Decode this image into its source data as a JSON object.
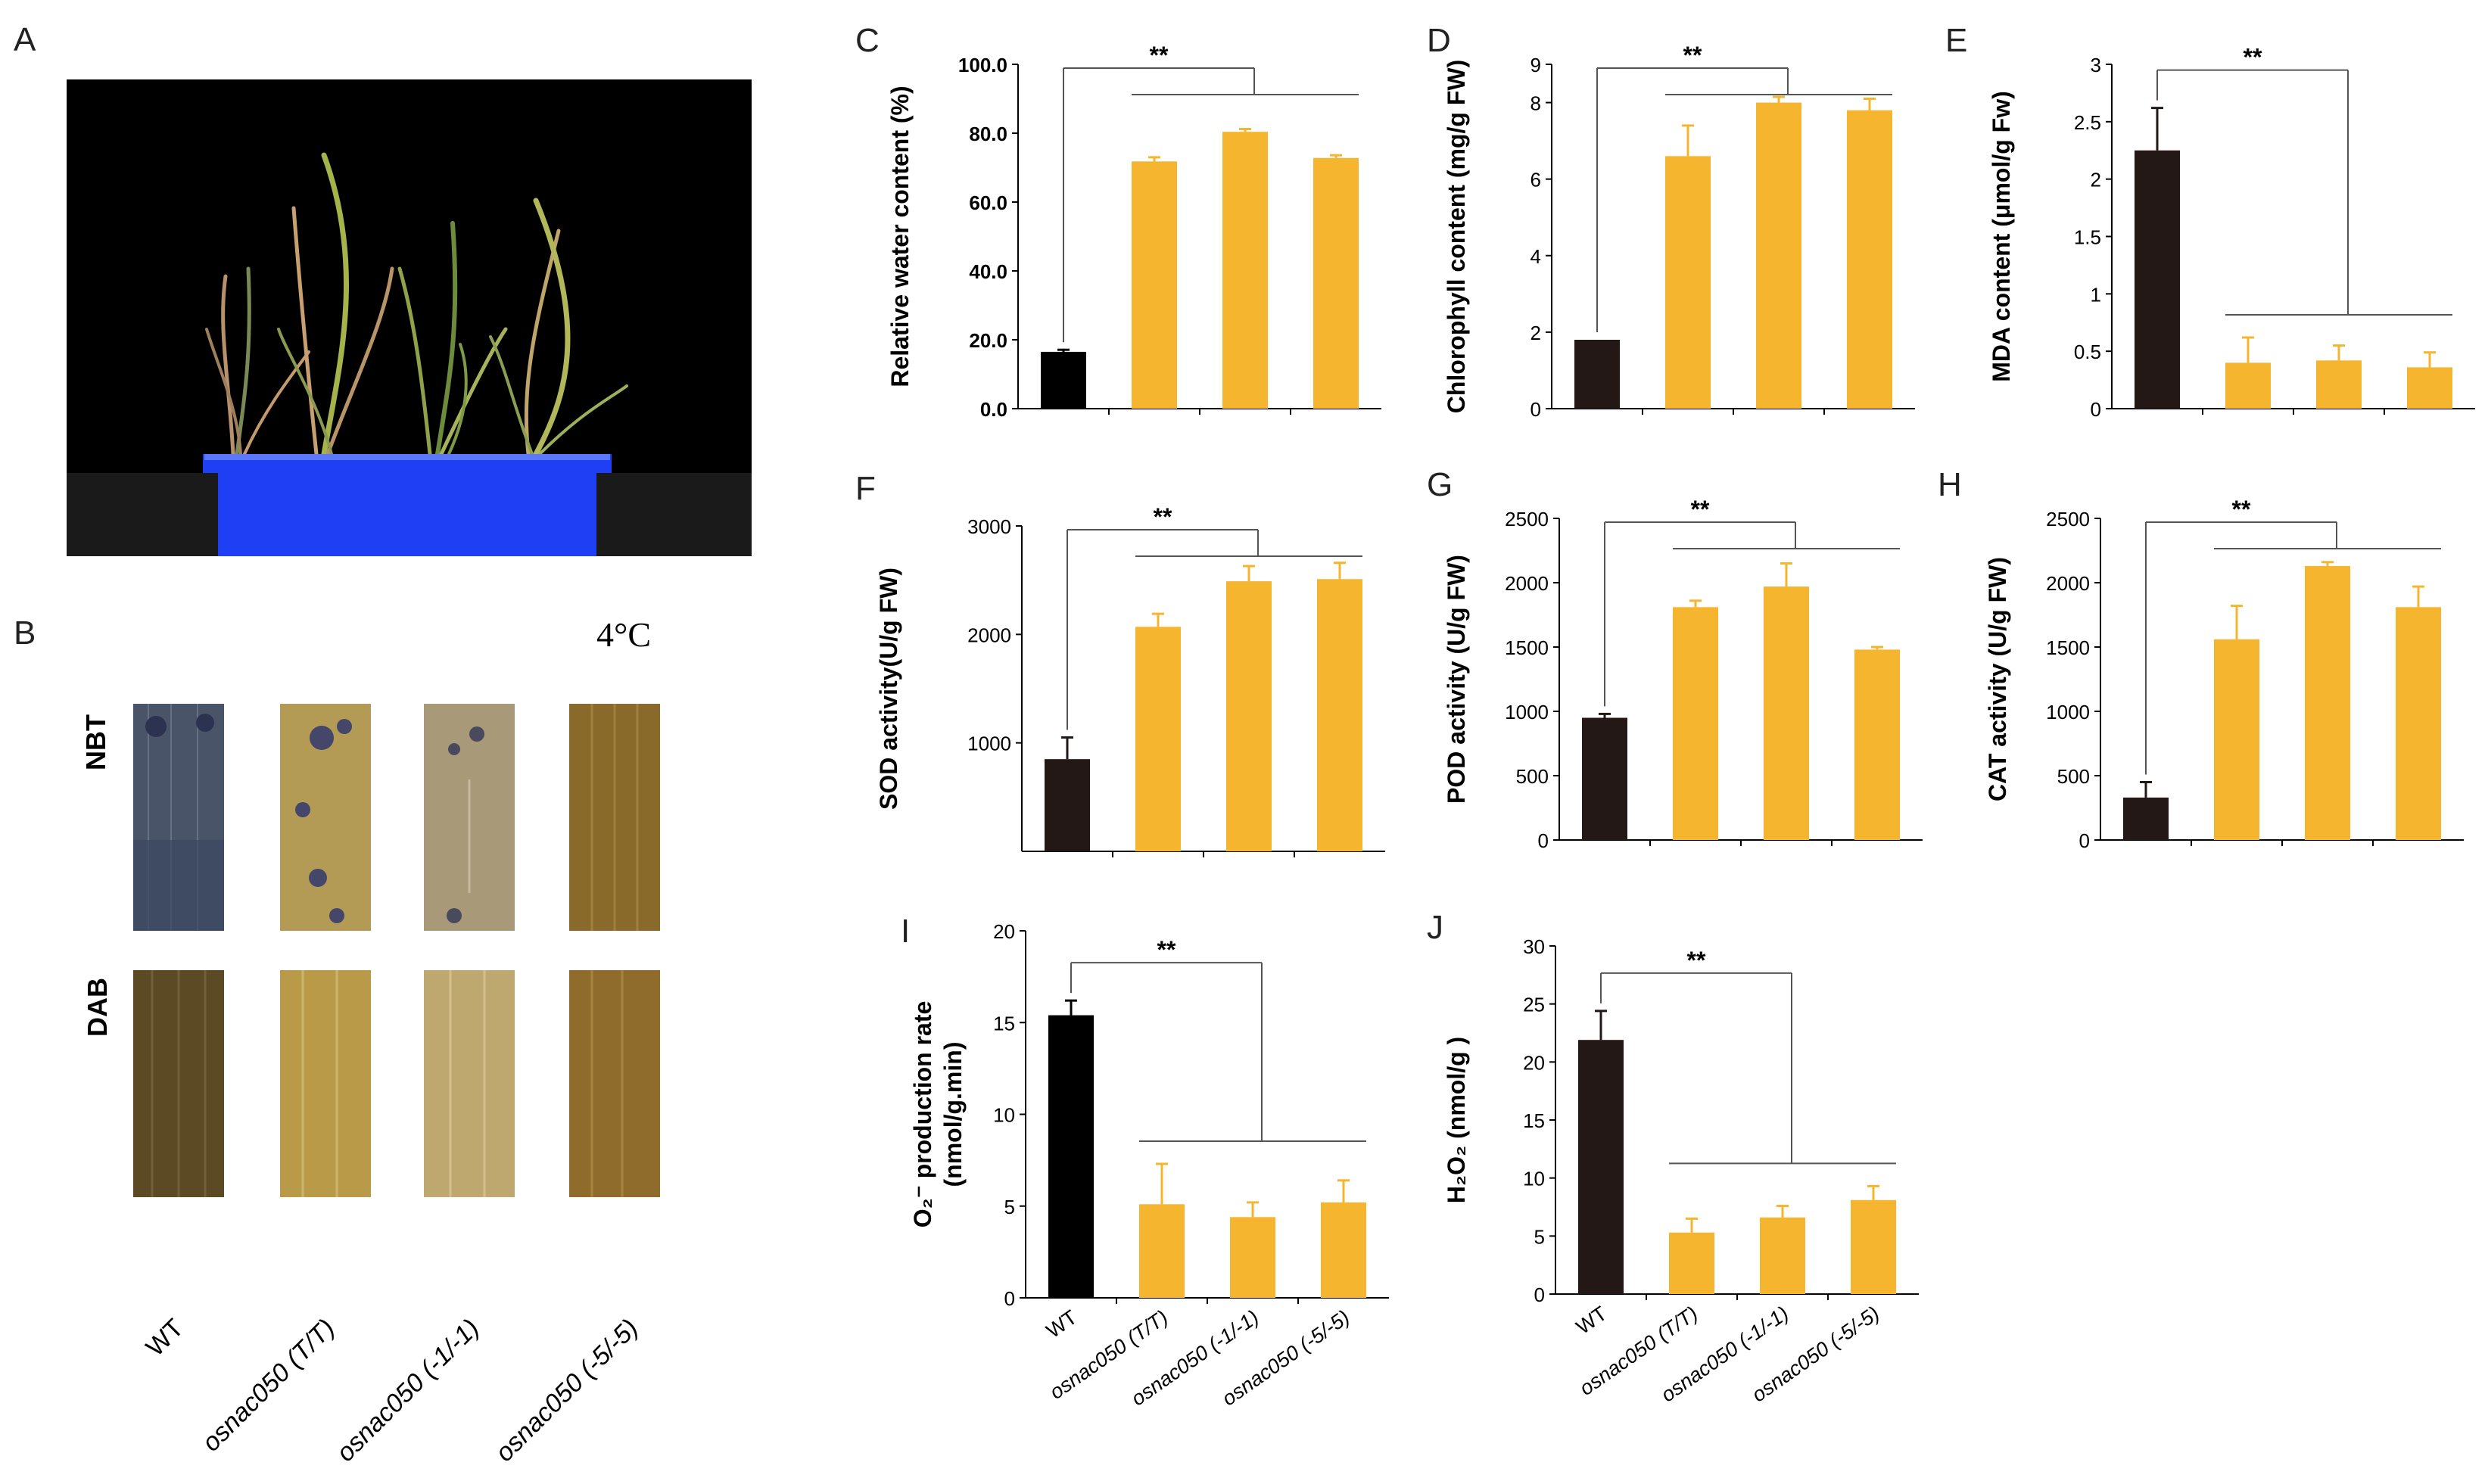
{
  "panels": {
    "A": "A",
    "B": "B"
  },
  "panelB": {
    "temperature": "4°C",
    "rows": [
      "NBT",
      "DAB"
    ],
    "genotypes": [
      "WT",
      "osnac050 (T/T)",
      "osnac050 (-1/-1)",
      "osnac050 (-5/-5)"
    ]
  },
  "colors": {
    "wt": "#000000",
    "mutant": "#f5b52e",
    "pot": "#1a3dff",
    "background_photo": "#000000"
  },
  "sig_label": "**",
  "chart_data": [
    {
      "id": "C",
      "type": "bar",
      "categories": [
        "WT",
        "osnac050 (T/T)",
        "osnac050 (-1/-1)",
        "osnac050 (-5/-5)"
      ],
      "values": [
        16.5,
        71.8,
        80.4,
        72.8
      ],
      "errors": [
        0.6,
        1.2,
        0.8,
        0.8
      ],
      "ylabel": "Relative water content  (%)",
      "ylim": [
        0,
        100
      ],
      "yticks": [
        "0.0",
        "20.0",
        "40.0",
        "60.0",
        "80.0",
        "100.0"
      ],
      "ytick_values": [
        0,
        20,
        40,
        60,
        80,
        100
      ],
      "annotation": "**"
    },
    {
      "id": "D",
      "type": "bar",
      "categories": [
        "WT",
        "osnac050 (T/T)",
        "osnac050 (-1/-1)",
        "osnac050 (-5/-5)"
      ],
      "values": [
        1.8,
        6.6,
        8.0,
        7.8
      ],
      "errors": [
        0.0,
        0.8,
        0.15,
        0.3
      ],
      "ylabel": "Chlorophyll  content  (mg/g FW)",
      "ylim": [
        0,
        9
      ],
      "yticks": [
        "0",
        "2",
        "4",
        "6",
        "8",
        "9"
      ],
      "ytick_values": [
        0,
        2,
        4,
        6,
        8,
        9
      ],
      "annotation": "**"
    },
    {
      "id": "E",
      "type": "bar",
      "categories": [
        "WT",
        "osnac050 (T/T)",
        "osnac050 (-1/-1)",
        "osnac050 (-5/-5)"
      ],
      "values": [
        2.25,
        0.4,
        0.42,
        0.36
      ],
      "errors": [
        0.37,
        0.22,
        0.13,
        0.13
      ],
      "ylabel": "MDA  content (μmol/g Fw)",
      "ylim": [
        0,
        3
      ],
      "yticks": [
        "0",
        "0.5",
        "1",
        "1.5",
        "2",
        "2.5",
        "3"
      ],
      "ytick_values": [
        0,
        0.5,
        1,
        1.5,
        2,
        2.5,
        3
      ],
      "annotation": "**"
    },
    {
      "id": "F",
      "type": "bar",
      "categories": [
        "WT",
        "osnac050 (T/T)",
        "osnac050 (-1/-1)",
        "osnac050 (-5/-5)"
      ],
      "values": [
        850,
        2070,
        2490,
        2510
      ],
      "errors": [
        200,
        120,
        140,
        150
      ],
      "ylabel": "SOD  activity(U/g  FW)",
      "ylim": [
        0,
        3000
      ],
      "yticks": [
        "1000",
        "2000",
        "3000"
      ],
      "ytick_values": [
        1000,
        2000,
        3000
      ],
      "annotation": "**"
    },
    {
      "id": "G",
      "type": "bar",
      "categories": [
        "WT",
        "osnac050 (T/T)",
        "osnac050 (-1/-1)",
        "osnac050 (-5/-5)"
      ],
      "values": [
        950,
        1810,
        1970,
        1480
      ],
      "errors": [
        30,
        50,
        180,
        20
      ],
      "ylabel": "POD  activity  (U/g FW)",
      "ylim": [
        0,
        2500
      ],
      "yticks": [
        "0",
        "500",
        "1000",
        "1500",
        "2000",
        "2500"
      ],
      "ytick_values": [
        0,
        500,
        1000,
        1500,
        2000,
        2500
      ],
      "annotation": "**"
    },
    {
      "id": "H",
      "type": "bar",
      "categories": [
        "WT",
        "osnac050 (T/T)",
        "osnac050 (-1/-1)",
        "osnac050 (-5/-5)"
      ],
      "values": [
        330,
        1560,
        2130,
        1810
      ],
      "errors": [
        120,
        260,
        30,
        160
      ],
      "ylabel": "CAT  activity   (U/g FW)",
      "ylim": [
        0,
        2500
      ],
      "yticks": [
        "0",
        "500",
        "1000",
        "1500",
        "2000",
        "2500"
      ],
      "ytick_values": [
        0,
        500,
        1000,
        1500,
        2000,
        2500
      ],
      "annotation": "**"
    },
    {
      "id": "I",
      "type": "bar",
      "categories": [
        "WT",
        "osnac050 (T/T)",
        "osnac050 (-1/-1)",
        "osnac050 (-5/-5)"
      ],
      "values": [
        15.4,
        5.1,
        4.4,
        5.2
      ],
      "errors": [
        0.8,
        2.2,
        0.8,
        1.2
      ],
      "ylabel_line1": "O₂⁻ production rate",
      "ylabel_line2": "(nmol/g.min)",
      "ylim": [
        0,
        20
      ],
      "yticks": [
        "0",
        "5",
        "10",
        "15",
        "20"
      ],
      "ytick_values": [
        0,
        5,
        10,
        15,
        20
      ],
      "annotation": "**",
      "xticklabels": [
        "WT",
        "osnac050 (T/T)",
        "osnac050  (-1/-1)",
        "osnac050 (-5/-5)"
      ]
    },
    {
      "id": "J",
      "type": "bar",
      "categories": [
        "WT",
        "osnac050 (T/T)",
        "osnac050 (-1/-1)",
        "osnac050 (-5/-5)"
      ],
      "values": [
        21.9,
        5.3,
        6.6,
        8.1
      ],
      "errors": [
        2.5,
        1.2,
        1.0,
        1.2
      ],
      "ylabel": "H₂O₂   (nmol/g )",
      "ylim": [
        0,
        30
      ],
      "yticks": [
        "0",
        "5",
        "10",
        "15",
        "20",
        "25",
        "30"
      ],
      "ytick_values": [
        0,
        5,
        10,
        15,
        20,
        25,
        30
      ],
      "annotation": "**",
      "xticklabels": [
        "WT",
        "osnac050 (T/T)",
        "osnac050  (-1/-1)",
        "osnac050  (-5/-5)"
      ]
    }
  ]
}
